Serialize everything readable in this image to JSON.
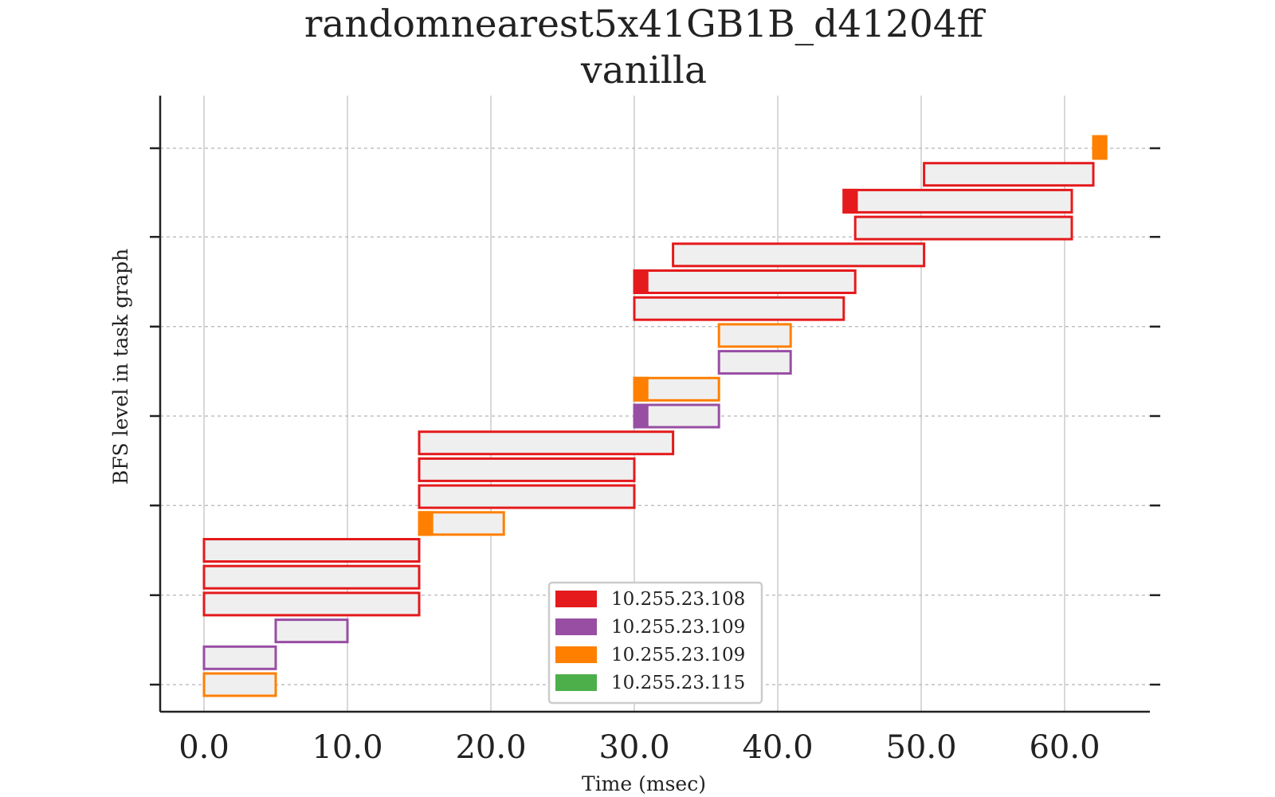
{
  "chart_data": {
    "type": "gantt",
    "title": "randomnearest5x41GB1B_d41204ff",
    "subtitle": "vanilla",
    "xlabel": "Time (msec)",
    "ylabel": "BFS level in task graph",
    "xlim": [
      -3,
      66
    ],
    "ylim": [
      -1,
      21.5
    ],
    "xticks": [
      0,
      10,
      20,
      30,
      40,
      50,
      60
    ],
    "xtick_labels": [
      "0.0",
      "10.0",
      "20.0",
      "30.0",
      "40.0",
      "50.0",
      "60.0"
    ],
    "yticks": [
      0,
      3.33,
      6.67,
      10,
      13.33,
      16.67,
      20
    ],
    "grid": true,
    "legend": {
      "placement": "bottom-center",
      "entries": [
        {
          "label": "10.255.23.108",
          "color": "#e41a1c"
        },
        {
          "label": "10.255.23.109",
          "color": "#984ea3"
        },
        {
          "label": "10.255.23.109",
          "color": "#ff7f00"
        },
        {
          "label": "10.255.23.115",
          "color": "#4daf4a"
        }
      ]
    },
    "tasks": [
      {
        "row": 0,
        "start": 0.0,
        "end": 5.0,
        "color": "#ff7f00",
        "head": 0
      },
      {
        "row": 1,
        "start": 0.0,
        "end": 5.0,
        "color": "#984ea3",
        "head": 0
      },
      {
        "row": 2,
        "start": 5.0,
        "end": 10.0,
        "color": "#984ea3",
        "head": 0
      },
      {
        "row": 3,
        "start": 0.0,
        "end": 15.0,
        "color": "#e41a1c",
        "head": 0
      },
      {
        "row": 4,
        "start": 0.0,
        "end": 15.0,
        "color": "#e41a1c",
        "head": 0
      },
      {
        "row": 5,
        "start": 0.0,
        "end": 15.0,
        "color": "#e41a1c",
        "head": 0
      },
      {
        "row": 6,
        "start": 15.0,
        "end": 20.9,
        "color": "#ff7f00",
        "head": 0.9
      },
      {
        "row": 7,
        "start": 15.0,
        "end": 30.0,
        "color": "#e41a1c",
        "head": 0
      },
      {
        "row": 8,
        "start": 15.0,
        "end": 30.0,
        "color": "#e41a1c",
        "head": 0
      },
      {
        "row": 9,
        "start": 15.0,
        "end": 32.7,
        "color": "#e41a1c",
        "head": 0
      },
      {
        "row": 10,
        "start": 30.0,
        "end": 35.9,
        "color": "#984ea3",
        "head": 0.9
      },
      {
        "row": 11,
        "start": 30.0,
        "end": 35.9,
        "color": "#ff7f00",
        "head": 0.9
      },
      {
        "row": 12,
        "start": 35.9,
        "end": 40.9,
        "color": "#984ea3",
        "head": 0
      },
      {
        "row": 13,
        "start": 35.9,
        "end": 40.9,
        "color": "#ff7f00",
        "head": 0
      },
      {
        "row": 14,
        "start": 30.0,
        "end": 44.6,
        "color": "#e41a1c",
        "head": 0
      },
      {
        "row": 15,
        "start": 30.0,
        "end": 45.4,
        "color": "#e41a1c",
        "head": 0.9
      },
      {
        "row": 16,
        "start": 32.7,
        "end": 50.2,
        "color": "#e41a1c",
        "head": 0
      },
      {
        "row": 17,
        "start": 45.4,
        "end": 60.5,
        "color": "#e41a1c",
        "head": 0
      },
      {
        "row": 18,
        "start": 44.6,
        "end": 60.5,
        "color": "#e41a1c",
        "head": 0.9
      },
      {
        "row": 19,
        "start": 50.2,
        "end": 62.0,
        "color": "#e41a1c",
        "head": 0
      },
      {
        "row": 20,
        "start": 62.0,
        "end": 62.9,
        "color": "#ff7f00",
        "head": 0.9
      }
    ]
  }
}
